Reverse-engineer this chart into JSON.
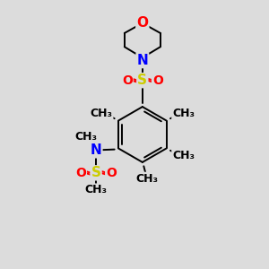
{
  "bg_color": "#dcdcdc",
  "atom_colors": {
    "C": "#000000",
    "N": "#0000ff",
    "O": "#ff0000",
    "S": "#cccc00"
  },
  "bond_color": "#000000",
  "font_size": 10,
  "fig_size": [
    3.0,
    3.0
  ],
  "dpi": 100,
  "xlim": [
    0,
    10
  ],
  "ylim": [
    0,
    10
  ]
}
